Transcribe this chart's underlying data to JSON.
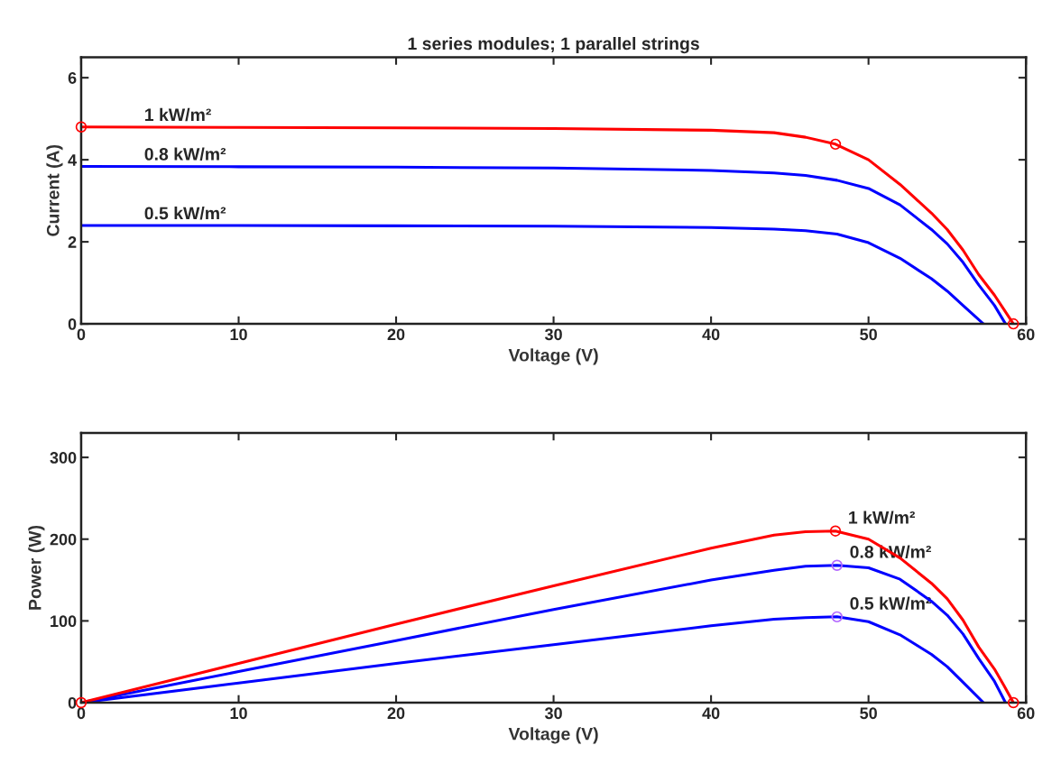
{
  "chart_data": [
    {
      "type": "line",
      "title": "1 series modules; 1 parallel strings",
      "xlabel": "Voltage (V)",
      "ylabel": "Current (A)",
      "xlim": [
        0,
        60
      ],
      "xticks": [
        0,
        10,
        20,
        30,
        40,
        50,
        60
      ],
      "ylim": [
        0,
        6.5
      ],
      "yticks": [
        0,
        2,
        4,
        6
      ],
      "grid": false,
      "legend": false,
      "series": [
        {
          "type": "line",
          "color": "#0000ff",
          "x": [
            0,
            10,
            20,
            30,
            40,
            44,
            46,
            48,
            50,
            52,
            54,
            55,
            56,
            57,
            58,
            58.7
          ],
          "values": [
            3.84,
            3.83,
            3.82,
            3.8,
            3.74,
            3.68,
            3.62,
            3.5,
            3.3,
            2.9,
            2.3,
            1.95,
            1.5,
            0.95,
            0.45,
            0
          ]
        },
        {
          "type": "line",
          "color": "#0000ff",
          "x": [
            0,
            10,
            20,
            30,
            40,
            44,
            46,
            48,
            50,
            52,
            54,
            55,
            56,
            57.3
          ],
          "values": [
            2.4,
            2.4,
            2.39,
            2.38,
            2.35,
            2.31,
            2.27,
            2.19,
            1.98,
            1.6,
            1.1,
            0.8,
            0.45,
            0
          ]
        },
        {
          "type": "line",
          "color": "#ff0000",
          "x": [
            0,
            10,
            20,
            30,
            40,
            44,
            46,
            47.9,
            50,
            52,
            54,
            55,
            56,
            57,
            58,
            58.6,
            59.2
          ],
          "values": [
            4.8,
            4.79,
            4.78,
            4.76,
            4.72,
            4.66,
            4.55,
            4.38,
            4.0,
            3.4,
            2.7,
            2.3,
            1.8,
            1.2,
            0.7,
            0.35,
            0
          ]
        },
        {
          "type": "scatter",
          "color": "#ff0000",
          "marker": "circle",
          "x": [
            0,
            47.9,
            59.2
          ],
          "values": [
            4.8,
            4.38,
            0
          ]
        }
      ],
      "annotations": [
        {
          "text": "1 kW/m²",
          "x": 4,
          "y": 4.8
        },
        {
          "text": "0.8 kW/m²",
          "x": 4,
          "y": 3.84
        },
        {
          "text": "0.5 kW/m²",
          "x": 4,
          "y": 2.4
        }
      ]
    },
    {
      "type": "line",
      "xlabel": "Voltage (V)",
      "ylabel": "Power (W)",
      "xlim": [
        0,
        60
      ],
      "xticks": [
        0,
        10,
        20,
        30,
        40,
        50,
        60
      ],
      "ylim": [
        0,
        330
      ],
      "yticks": [
        0,
        100,
        200,
        300
      ],
      "grid": false,
      "legend": false,
      "series": [
        {
          "type": "line",
          "color": "#0000ff",
          "x": [
            0,
            10,
            20,
            30,
            40,
            44,
            46,
            48,
            50,
            52,
            54,
            55,
            56,
            57,
            58,
            58.7
          ],
          "values": [
            0,
            38,
            76,
            114,
            150,
            162,
            167,
            168,
            165,
            151,
            124,
            107,
            84,
            54,
            26,
            0
          ]
        },
        {
          "type": "line",
          "color": "#0000ff",
          "x": [
            0,
            10,
            20,
            30,
            40,
            44,
            46,
            48,
            50,
            52,
            54,
            55,
            56,
            57.3
          ],
          "values": [
            0,
            24,
            48,
            71,
            94,
            102,
            104,
            105,
            99,
            83,
            59,
            44,
            25,
            0
          ]
        },
        {
          "type": "line",
          "color": "#ff0000",
          "x": [
            0,
            10,
            20,
            30,
            40,
            44,
            46,
            47.9,
            50,
            52,
            54,
            55,
            56,
            57,
            58,
            58.6,
            59.2
          ],
          "values": [
            0,
            48,
            96,
            143,
            189,
            205,
            209,
            210,
            200,
            177,
            146,
            127,
            101,
            68,
            41,
            21,
            0
          ]
        },
        {
          "type": "scatter",
          "color": "#ff0000",
          "marker": "circle",
          "x": [
            0,
            47.9,
            59.2
          ],
          "values": [
            0,
            210,
            0
          ]
        },
        {
          "type": "scatter",
          "color": "#b266ff",
          "marker": "circle",
          "x": [
            48,
            48
          ],
          "values": [
            168,
            105
          ]
        }
      ],
      "annotations": [
        {
          "text": "1 kW/m²",
          "x": 47.9,
          "y": 210
        },
        {
          "text": "0.8 kW/m²",
          "x": 48,
          "y": 168
        },
        {
          "text": "0.5 kW/m²",
          "x": 48,
          "y": 105
        }
      ]
    }
  ]
}
